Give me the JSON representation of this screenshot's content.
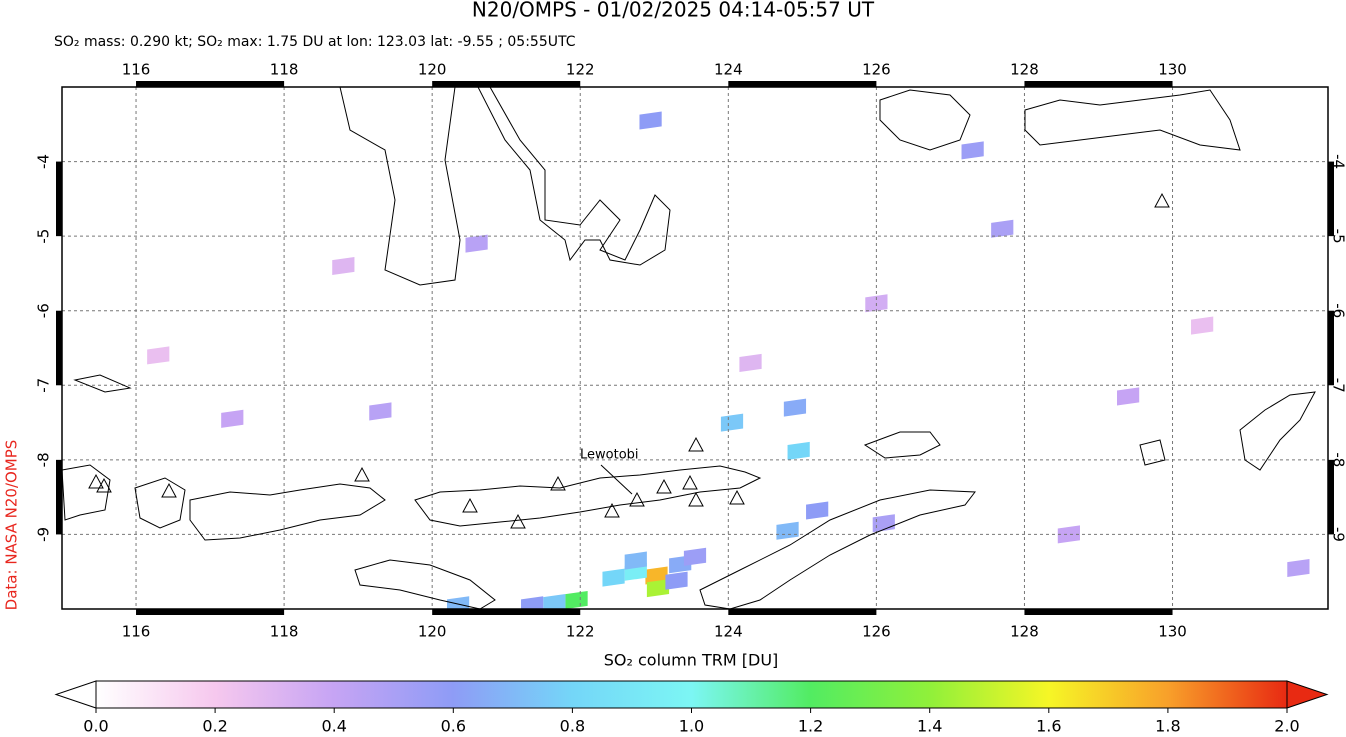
{
  "map": {
    "title": "N20/OMPS - 01/02/2025 04:14-05:57 UT",
    "subtitle": "SO₂ mass: 0.290 kt; SO₂ max: 1.75 DU at lon: 123.03 lat: -9.55 ; 05:55UTC",
    "credit": "Data: NASA N20/OMPS",
    "volcano_label": "Lewotobi",
    "lonlim": [
      115,
      132.1
    ],
    "latlim": [
      -10,
      -3
    ],
    "lonticks": [
      116,
      118,
      120,
      122,
      124,
      126,
      128,
      130
    ],
    "latticks": [
      -4,
      -5,
      -6,
      -7,
      -8,
      -9
    ],
    "grid": true,
    "pixels": [
      {
        "lon": 123.03,
        "lat": -9.55,
        "du": 1.75
      },
      {
        "lon": 123.05,
        "lat": -9.72,
        "du": 1.45
      },
      {
        "lon": 122.75,
        "lat": -9.5,
        "du": 0.95
      },
      {
        "lon": 122.45,
        "lat": -9.58,
        "du": 0.8
      },
      {
        "lon": 123.35,
        "lat": -9.4,
        "du": 0.65
      },
      {
        "lon": 122.75,
        "lat": -9.35,
        "du": 0.7
      },
      {
        "lon": 123.3,
        "lat": -9.62,
        "du": 0.6
      },
      {
        "lon": 123.55,
        "lat": -9.3,
        "du": 0.55
      },
      {
        "lon": 121.95,
        "lat": -9.88,
        "du": 1.2
      },
      {
        "lon": 121.65,
        "lat": -9.92,
        "du": 0.75
      },
      {
        "lon": 121.35,
        "lat": -9.95,
        "du": 0.6
      },
      {
        "lon": 120.35,
        "lat": -9.95,
        "du": 0.7
      },
      {
        "lon": 124.05,
        "lat": -7.5,
        "du": 0.75
      },
      {
        "lon": 124.9,
        "lat": -7.3,
        "du": 0.65
      },
      {
        "lon": 124.95,
        "lat": -7.88,
        "du": 0.8
      },
      {
        "lon": 124.8,
        "lat": -8.95,
        "du": 0.7
      },
      {
        "lon": 125.2,
        "lat": -8.68,
        "du": 0.6
      },
      {
        "lon": 126.1,
        "lat": -8.85,
        "du": 0.5
      },
      {
        "lon": 122.95,
        "lat": -3.45,
        "du": 0.6
      },
      {
        "lon": 127.7,
        "lat": -4.9,
        "du": 0.5
      },
      {
        "lon": 127.3,
        "lat": -3.85,
        "du": 0.55
      },
      {
        "lon": 119.3,
        "lat": -7.35,
        "du": 0.45
      },
      {
        "lon": 117.3,
        "lat": -7.45,
        "du": 0.4
      },
      {
        "lon": 120.6,
        "lat": -5.1,
        "du": 0.45
      },
      {
        "lon": 126.0,
        "lat": -5.9,
        "du": 0.35
      },
      {
        "lon": 131.7,
        "lat": -9.45,
        "du": 0.45
      },
      {
        "lon": 129.4,
        "lat": -7.15,
        "du": 0.4
      },
      {
        "lon": 128.6,
        "lat": -9.0,
        "du": 0.4
      },
      {
        "lon": 118.8,
        "lat": -5.4,
        "du": 0.3
      },
      {
        "lon": 116.3,
        "lat": -6.6,
        "du": 0.25
      },
      {
        "lon": 130.4,
        "lat": -6.2,
        "du": 0.25
      },
      {
        "lon": 124.3,
        "lat": -6.7,
        "du": 0.3
      }
    ],
    "colorbar": {
      "label": "SO₂ column TRM [DU]",
      "lim": [
        0,
        2
      ],
      "ticks": [
        {
          "value": 0,
          "label": "0.0"
        },
        {
          "value": 0.2,
          "label": "0.2"
        },
        {
          "value": 0.4,
          "label": "0.4"
        },
        {
          "value": 0.6,
          "label": "0.6"
        },
        {
          "value": 0.8,
          "label": "0.8"
        },
        {
          "value": 1.0,
          "label": "1.0"
        },
        {
          "value": 1.2,
          "label": "1.2"
        },
        {
          "value": 1.4,
          "label": "1.4"
        },
        {
          "value": 1.6,
          "label": "1.6"
        },
        {
          "value": 1.8,
          "label": "1.8"
        },
        {
          "value": 2.0,
          "label": "2.0"
        }
      ],
      "colors": [
        "#ffffff",
        "#f6c8ee",
        "#c6a4f4",
        "#8e9cf6",
        "#74d6f8",
        "#7cf6f4",
        "#52ec62",
        "#90f03a",
        "#f6f626",
        "#f8a02a",
        "#e82a12"
      ]
    }
  }
}
